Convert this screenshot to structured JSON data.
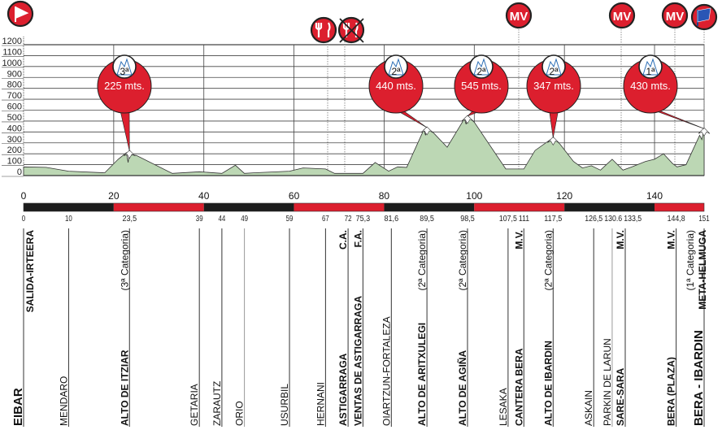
{
  "chart_data": {
    "type": "area",
    "title": "",
    "xlabel": "",
    "ylabel": "",
    "xlim": [
      0,
      151
    ],
    "ylim": [
      0,
      1200
    ],
    "grid": true,
    "y_ticks": [
      0,
      100,
      200,
      300,
      400,
      500,
      600,
      700,
      800,
      900,
      1000,
      1100,
      1200
    ],
    "x_ticks": [
      0,
      20,
      40,
      60,
      80,
      100,
      120,
      140
    ],
    "profile": {
      "km": [
        0,
        5,
        10,
        18,
        21,
        22.8,
        23.2,
        23.5,
        24,
        25,
        33,
        39,
        44,
        47,
        49,
        51,
        59,
        62,
        67,
        69,
        75.3,
        78,
        81,
        83,
        85,
        88.8,
        89.2,
        89.5,
        91,
        94,
        97.8,
        98.2,
        98.5,
        100,
        107,
        111,
        113.5,
        116.9,
        117.3,
        117.5,
        119,
        122,
        124,
        126,
        128,
        130.6,
        133,
        135,
        138,
        140,
        142,
        144,
        145,
        147,
        150,
        150.5,
        151
      ],
      "elevation": [
        80,
        75,
        40,
        25,
        150,
        210,
        120,
        225,
        190,
        185,
        20,
        35,
        20,
        95,
        20,
        25,
        40,
        70,
        60,
        20,
        20,
        120,
        40,
        80,
        75,
        420,
        370,
        440,
        390,
        260,
        520,
        470,
        545,
        490,
        60,
        60,
        230,
        330,
        300,
        347,
        290,
        130,
        70,
        90,
        50,
        150,
        50,
        80,
        130,
        150,
        200,
        110,
        80,
        100,
        370,
        330,
        430
      ]
    },
    "colors": {
      "profile_fill": "#bcd7b4",
      "accent_red": "#dc1f2e",
      "bar_black": "#1c1c1c"
    },
    "distance_bar": {
      "segments": [
        [
          0,
          20,
          "black"
        ],
        [
          20,
          40,
          "red"
        ],
        [
          40,
          60,
          "black"
        ],
        [
          60,
          80,
          "red"
        ],
        [
          80,
          100,
          "black"
        ],
        [
          100,
          120,
          "red"
        ],
        [
          120,
          140,
          "black"
        ],
        [
          140,
          151,
          "red"
        ]
      ]
    },
    "climbs": [
      {
        "km": 23.5,
        "category": "3ª",
        "altitude_label": "225 mts."
      },
      {
        "km": 89.5,
        "category": "2ª",
        "altitude_label": "440 mts."
      },
      {
        "km": 98.5,
        "category": "2ª",
        "altitude_label": "545 mts."
      },
      {
        "km": 117.5,
        "category": "2ª",
        "altitude_label": "347 mts."
      },
      {
        "km": 151,
        "category": "1ª",
        "altitude_label": "430 mts."
      }
    ],
    "top_icons": [
      {
        "name": "start-flag-icon",
        "symbol": "start-flag"
      },
      {
        "name": "feed-zone-icon",
        "symbol": "fork-knife"
      },
      {
        "name": "end-feed-zone-icon",
        "symbol": "fork-knife-crossed"
      },
      {
        "name": "sprint-icon",
        "symbol": "MV"
      },
      {
        "name": "sprint-icon",
        "symbol": "MV"
      },
      {
        "name": "sprint-icon",
        "symbol": "MV"
      },
      {
        "name": "finish-flag-icon",
        "symbol": "checkered-flag"
      }
    ],
    "waypoints": [
      {
        "km": 0,
        "km_label": "0",
        "name": "EIBAR",
        "bold": true,
        "big": true,
        "top": "SALIDA-IRTEERA"
      },
      {
        "km": 10,
        "km_label": "10",
        "name": "MENDARO"
      },
      {
        "km": 23.5,
        "km_label": "23,5",
        "name": "ALTO DE ITZIAR",
        "bold": true,
        "top": "(3ª Categoria)"
      },
      {
        "km": 39,
        "km_label": "39",
        "name": "GETARIA"
      },
      {
        "km": 44,
        "km_label": "44",
        "name": "ZARAUTZ"
      },
      {
        "km": 49,
        "km_label": "49",
        "name": "ORIO",
        "grey": true
      },
      {
        "km": 59,
        "km_label": "59",
        "name": "USURBIL"
      },
      {
        "km": 67,
        "km_label": "67",
        "name": "HERNANI"
      },
      {
        "km": 72,
        "km_label": "72",
        "name": "ASTIGARRAGA",
        "bold": true,
        "top": "C.A."
      },
      {
        "km": 75.3,
        "km_label": "75,3",
        "name": "VENTAS DE ASTIGARRAGA",
        "bold": true,
        "top": "F.A."
      },
      {
        "km": 81.6,
        "km_label": "81,6",
        "name": "OIARTZUN-FORTALEZA"
      },
      {
        "km": 89.5,
        "km_label": "89,5",
        "name": "ALTO DE ARITXULEGI",
        "bold": true,
        "top": "(2ª Categoria)"
      },
      {
        "km": 98.5,
        "km_label": "98,5",
        "name": "ALTO DE AGIÑA",
        "bold": true,
        "top": "(2ª Categoria)"
      },
      {
        "km": 107.5,
        "km_label": "107,5",
        "name": "LESAKA"
      },
      {
        "km": 111,
        "km_label": "111",
        "name": "CANTERA BERA",
        "bold": true,
        "top": "M.V."
      },
      {
        "km": 117.5,
        "km_label": "117,5",
        "name": "ALTO DE IBARDIN",
        "bold": true,
        "top": "(2ª Categoria)"
      },
      {
        "km": 126.5,
        "km_label": "126,5",
        "name": "ASKAIN"
      },
      {
        "km": 130.6,
        "km_label": "130.6",
        "name": "PARKIN DE LARUN",
        "grey": true
      },
      {
        "km": 133.5,
        "km_label": "133,5",
        "name": "SARE-SARA",
        "bold": true,
        "top": "M.V."
      },
      {
        "km": 144.8,
        "km_label": "144,8",
        "name": "BERA (PLAZA)",
        "bold": true,
        "top": "M.V."
      },
      {
        "km": 151,
        "km_label": "151",
        "name": "BERA - IBARDIN",
        "bold": true,
        "big": true,
        "top": "(1ª Categoria)",
        "top2": "META-HELMUGA"
      }
    ]
  }
}
